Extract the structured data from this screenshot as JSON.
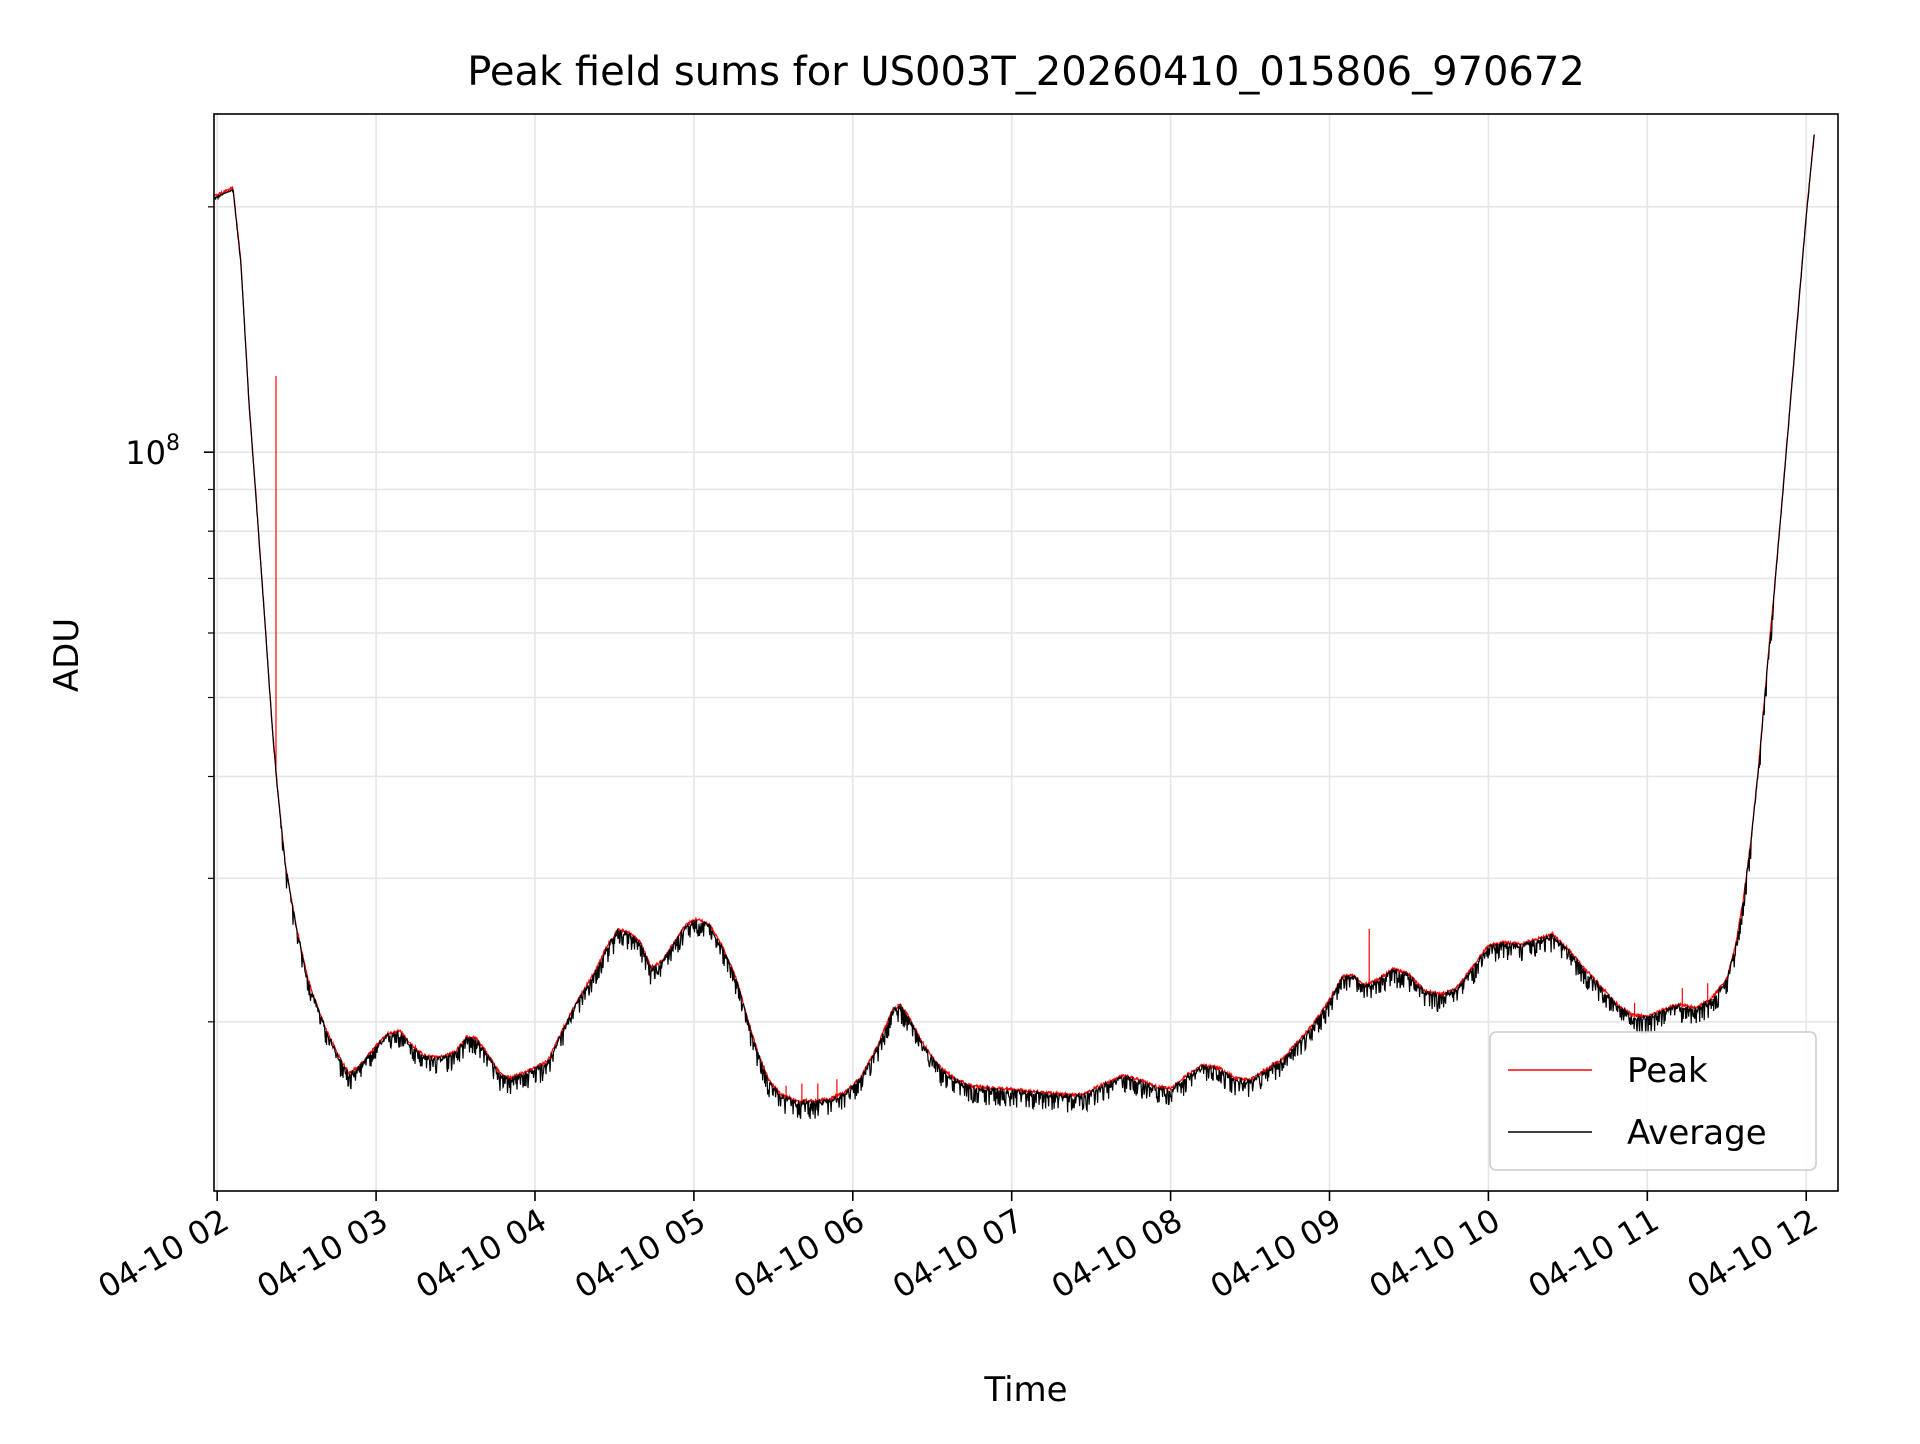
{
  "chart_data": {
    "type": "line",
    "title": "Peak field sums for US003T_20260410_015806_970672",
    "xlabel": "Time",
    "ylabel": "ADU",
    "yscale": "log",
    "ylim": [
      12400000,
      260000000
    ],
    "xlim": [
      1.98,
      12.2
    ],
    "x_ticks": [
      {
        "x": 2,
        "label": "04-10 02"
      },
      {
        "x": 3,
        "label": "04-10 03"
      },
      {
        "x": 4,
        "label": "04-10 04"
      },
      {
        "x": 5,
        "label": "04-10 05"
      },
      {
        "x": 6,
        "label": "04-10 06"
      },
      {
        "x": 7,
        "label": "04-10 07"
      },
      {
        "x": 8,
        "label": "04-10 08"
      },
      {
        "x": 9,
        "label": "04-10 09"
      },
      {
        "x": 10,
        "label": "04-10 10"
      },
      {
        "x": 11,
        "label": "04-10 11"
      },
      {
        "x": 12,
        "label": "04-10 12"
      }
    ],
    "y_major_tick": {
      "value": 100000000,
      "base": "10",
      "exp": "8"
    },
    "y_minor_ticks": [
      20000000,
      30000000,
      40000000,
      50000000,
      60000000,
      70000000,
      80000000,
      90000000,
      200000000
    ],
    "grid": true,
    "legend": {
      "position": "lower right",
      "entries": [
        {
          "name": "Peak",
          "color": "#ff0000"
        },
        {
          "name": "Average",
          "color": "#000000"
        }
      ]
    },
    "series": [
      {
        "name": "Average",
        "color": "#000000",
        "note": "time in hours (x), ADU (y); envelope of a noisy trace",
        "points": [
          [
            1.98,
            205000000
          ],
          [
            2.05,
            208000000
          ],
          [
            2.1,
            210000000
          ],
          [
            2.15,
            170000000
          ],
          [
            2.2,
            115000000
          ],
          [
            2.25,
            85000000
          ],
          [
            2.3,
            62000000
          ],
          [
            2.35,
            45000000
          ],
          [
            2.38,
            38500000
          ],
          [
            2.43,
            31000000
          ],
          [
            2.5,
            26000000
          ],
          [
            2.57,
            22500000
          ],
          [
            2.63,
            20800000
          ],
          [
            2.7,
            19200000
          ],
          [
            2.77,
            18000000
          ],
          [
            2.83,
            17200000
          ],
          [
            2.9,
            17600000
          ],
          [
            3.0,
            18600000
          ],
          [
            3.08,
            19300000
          ],
          [
            3.15,
            19400000
          ],
          [
            3.22,
            18700000
          ],
          [
            3.3,
            18100000
          ],
          [
            3.4,
            18000000
          ],
          [
            3.5,
            18300000
          ],
          [
            3.57,
            19100000
          ],
          [
            3.63,
            19000000
          ],
          [
            3.7,
            18200000
          ],
          [
            3.78,
            17200000
          ],
          [
            3.85,
            17000000
          ],
          [
            3.95,
            17300000
          ],
          [
            4.08,
            17800000
          ],
          [
            4.17,
            19400000
          ],
          [
            4.27,
            21200000
          ],
          [
            4.37,
            22800000
          ],
          [
            4.45,
            24600000
          ],
          [
            4.52,
            25800000
          ],
          [
            4.6,
            25600000
          ],
          [
            4.67,
            24800000
          ],
          [
            4.73,
            23200000
          ],
          [
            4.8,
            23600000
          ],
          [
            4.88,
            25000000
          ],
          [
            4.95,
            26200000
          ],
          [
            5.02,
            26600000
          ],
          [
            5.1,
            26200000
          ],
          [
            5.18,
            24600000
          ],
          [
            5.27,
            22400000
          ],
          [
            5.33,
            20300000
          ],
          [
            5.4,
            18300000
          ],
          [
            5.47,
            16900000
          ],
          [
            5.55,
            16200000
          ],
          [
            5.65,
            15900000
          ],
          [
            5.75,
            15900000
          ],
          [
            5.85,
            16000000
          ],
          [
            5.95,
            16300000
          ],
          [
            6.05,
            17000000
          ],
          [
            6.15,
            18500000
          ],
          [
            6.25,
            20600000
          ],
          [
            6.3,
            20900000
          ],
          [
            6.35,
            20200000
          ],
          [
            6.45,
            18600000
          ],
          [
            6.55,
            17500000
          ],
          [
            6.65,
            16900000
          ],
          [
            6.75,
            16600000
          ],
          [
            6.9,
            16500000
          ],
          [
            7.05,
            16400000
          ],
          [
            7.2,
            16300000
          ],
          [
            7.35,
            16200000
          ],
          [
            7.45,
            16200000
          ],
          [
            7.55,
            16600000
          ],
          [
            7.7,
            17100000
          ],
          [
            7.8,
            16900000
          ],
          [
            7.9,
            16600000
          ],
          [
            8.0,
            16500000
          ],
          [
            8.1,
            17100000
          ],
          [
            8.2,
            17600000
          ],
          [
            8.3,
            17500000
          ],
          [
            8.4,
            17000000
          ],
          [
            8.5,
            16900000
          ],
          [
            8.6,
            17400000
          ],
          [
            8.7,
            17900000
          ],
          [
            8.8,
            18800000
          ],
          [
            8.9,
            19800000
          ],
          [
            9.0,
            21200000
          ],
          [
            9.08,
            22600000
          ],
          [
            9.15,
            22700000
          ],
          [
            9.22,
            22100000
          ],
          [
            9.3,
            22400000
          ],
          [
            9.4,
            23100000
          ],
          [
            9.5,
            22800000
          ],
          [
            9.6,
            21700000
          ],
          [
            9.7,
            21500000
          ],
          [
            9.8,
            21900000
          ],
          [
            9.9,
            23200000
          ],
          [
            10.0,
            24700000
          ],
          [
            10.1,
            24900000
          ],
          [
            10.2,
            24800000
          ],
          [
            10.3,
            25100000
          ],
          [
            10.4,
            25500000
          ],
          [
            10.5,
            24500000
          ],
          [
            10.6,
            23200000
          ],
          [
            10.7,
            22100000
          ],
          [
            10.8,
            21000000
          ],
          [
            10.9,
            20300000
          ],
          [
            11.0,
            20200000
          ],
          [
            11.1,
            20600000
          ],
          [
            11.2,
            20900000
          ],
          [
            11.3,
            20700000
          ],
          [
            11.4,
            21200000
          ],
          [
            11.5,
            22500000
          ],
          [
            11.55,
            24500000
          ],
          [
            11.6,
            27800000
          ],
          [
            11.65,
            33000000
          ],
          [
            11.7,
            41000000
          ],
          [
            11.75,
            53000000
          ],
          [
            11.8,
            68000000
          ],
          [
            11.85,
            88000000
          ],
          [
            11.9,
            115000000
          ],
          [
            11.95,
            150000000
          ],
          [
            12.0,
            195000000
          ],
          [
            12.05,
            245000000
          ]
        ]
      },
      {
        "name": "Peak",
        "color": "#ff0000",
        "note": "tracks Average closely; isolated spikes listed",
        "spikes": [
          [
            2.37,
            124000000
          ],
          [
            5.58,
            16700000
          ],
          [
            5.68,
            16800000
          ],
          [
            5.78,
            16800000
          ],
          [
            5.9,
            17000000
          ],
          [
            9.25,
            26000000
          ],
          [
            10.92,
            21100000
          ],
          [
            11.22,
            22000000
          ],
          [
            11.38,
            22300000
          ]
        ]
      }
    ]
  }
}
